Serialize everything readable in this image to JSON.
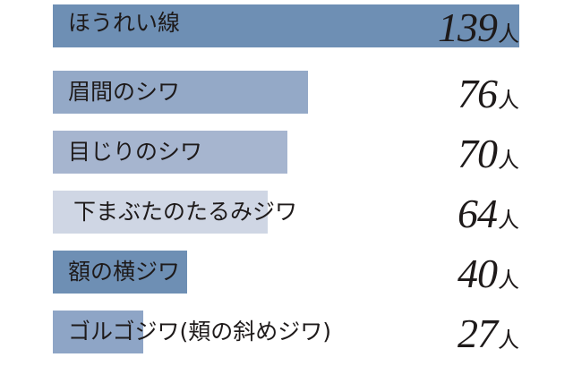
{
  "chart_data": {
    "type": "bar",
    "orientation": "horizontal",
    "title": "",
    "xlabel": "",
    "ylabel": "",
    "categories": [
      "ほうれい線",
      "眉間のシワ",
      "目じりのシワ",
      "下まぶたのたるみジワ",
      "額の横ジワ",
      "ゴルゴジワ(頬の斜めジワ)"
    ],
    "values": [
      139,
      76,
      70,
      64,
      40,
      27
    ],
    "unit": "人",
    "xlim": [
      0,
      139
    ],
    "grid": false,
    "legend": "none",
    "bar_colors": [
      "#6e8fb4",
      "#94a9c7",
      "#a6b5cf",
      "#cfd6e4",
      "#6e8fb4",
      "#8ea5c6"
    ]
  },
  "rows": [
    {
      "label": "ほうれい線",
      "value": "139",
      "unit": "人",
      "color": "#6e8fb4"
    },
    {
      "label": "眉間のシワ",
      "value": "76",
      "unit": "人",
      "color": "#94a9c7"
    },
    {
      "label": "目じりのシワ",
      "value": "70",
      "unit": "人",
      "color": "#a6b5cf"
    },
    {
      "label": "下まぶたのたるみジワ",
      "value": "64",
      "unit": "人",
      "color": "#cfd6e4"
    },
    {
      "label": "額の横ジワ",
      "value": "40",
      "unit": "人",
      "color": "#6e8fb4"
    },
    {
      "label": "ゴルゴジワ(頬の斜めジワ)",
      "value": "27",
      "unit": "人",
      "color": "#8ea5c6"
    }
  ]
}
